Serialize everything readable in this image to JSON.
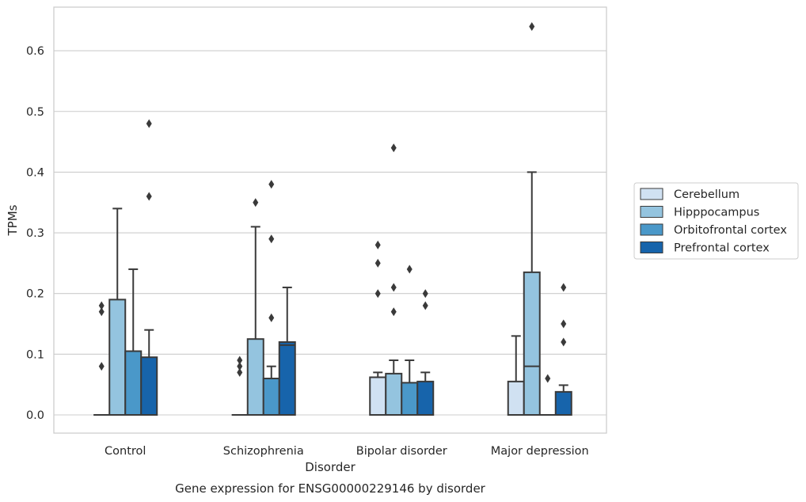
{
  "chart_data": {
    "type": "box",
    "title": "Gene expression for ENSG00000229146 by disorder",
    "xlabel": "Disorder",
    "ylabel": "TPMs",
    "ylim": [
      -0.03,
      0.675
    ],
    "yticks": [
      "0.0",
      "0.1",
      "0.2",
      "0.3",
      "0.4",
      "0.5",
      "0.6"
    ],
    "ytick_values": [
      0.0,
      0.1,
      0.2,
      0.3,
      0.4,
      0.5,
      0.6
    ],
    "grid": true,
    "legend_position": "right",
    "categories": [
      "Control",
      "Schizophrenia",
      "Bipolar disorder",
      "Major depression"
    ],
    "series": [
      {
        "name": "Cerebellum",
        "color": "#d0e1f2",
        "boxes": [
          {
            "q1": 0,
            "median": 0,
            "q3": 0,
            "whisker_low": 0,
            "whisker_high": 0,
            "outliers": [
              0.08,
              0.17,
              0.18
            ]
          },
          {
            "q1": 0,
            "median": 0,
            "q3": 0,
            "whisker_low": 0,
            "whisker_high": 0,
            "outliers": [
              0.07,
              0.08,
              0.09
            ]
          },
          {
            "q1": 0,
            "median": 0,
            "q3": 0.062,
            "whisker_low": 0,
            "whisker_high": 0.07,
            "outliers": [
              0.2,
              0.25,
              0.28
            ]
          },
          {
            "q1": 0,
            "median": 0,
            "q3": 0.055,
            "whisker_low": 0,
            "whisker_high": 0.13,
            "outliers": []
          }
        ]
      },
      {
        "name": "Hipppocampus",
        "color": "#94c4df",
        "boxes": [
          {
            "q1": 0,
            "median": 0,
            "q3": 0.19,
            "whisker_low": 0,
            "whisker_high": 0.34,
            "outliers": []
          },
          {
            "q1": 0,
            "median": 0,
            "q3": 0.125,
            "whisker_low": 0,
            "whisker_high": 0.31,
            "outliers": [
              0.35
            ]
          },
          {
            "q1": 0,
            "median": 0,
            "q3": 0.068,
            "whisker_low": 0,
            "whisker_high": 0.09,
            "outliers": [
              0.17,
              0.21,
              0.44
            ]
          },
          {
            "q1": 0,
            "median": 0.08,
            "q3": 0.235,
            "whisker_low": 0,
            "whisker_high": 0.4,
            "outliers": [
              0.64
            ]
          }
        ]
      },
      {
        "name": "Orbitofrontal cortex",
        "color": "#4a98c9",
        "boxes": [
          {
            "q1": 0,
            "median": 0,
            "q3": 0.105,
            "whisker_low": 0,
            "whisker_high": 0.24,
            "outliers": []
          },
          {
            "q1": 0,
            "median": 0,
            "q3": 0.06,
            "whisker_low": 0,
            "whisker_high": 0.08,
            "outliers": [
              0.16,
              0.29,
              0.38
            ]
          },
          {
            "q1": 0,
            "median": 0,
            "q3": 0.053,
            "whisker_low": 0,
            "whisker_high": 0.09,
            "outliers": [
              0.24
            ]
          },
          {
            "q1": 0,
            "median": 0,
            "q3": 0,
            "whisker_low": 0,
            "whisker_high": 0,
            "outliers": [
              0.06
            ]
          }
        ]
      },
      {
        "name": "Prefrontal cortex",
        "color": "#1764ab",
        "boxes": [
          {
            "q1": 0,
            "median": 0,
            "q3": 0.095,
            "whisker_low": 0,
            "whisker_high": 0.14,
            "outliers": [
              0.36,
              0.48
            ]
          },
          {
            "q1": 0,
            "median": 0.115,
            "q3": 0.12,
            "whisker_low": 0,
            "whisker_high": 0.21,
            "outliers": []
          },
          {
            "q1": 0,
            "median": 0,
            "q3": 0.055,
            "whisker_low": 0,
            "whisker_high": 0.07,
            "outliers": [
              0.18,
              0.2
            ]
          },
          {
            "q1": 0,
            "median": 0,
            "q3": 0.038,
            "whisker_low": 0,
            "whisker_high": 0.049,
            "outliers": [
              0.12,
              0.15,
              0.21
            ]
          }
        ]
      }
    ]
  }
}
